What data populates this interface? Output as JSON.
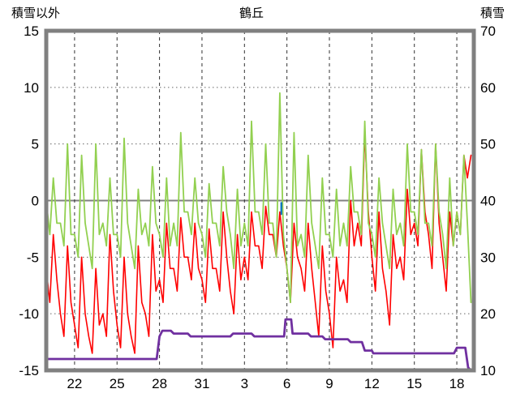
{
  "title": "鶴丘",
  "colors": {
    "frame": "#808080",
    "zero_line": "#808080",
    "grid_vertical": "#333333",
    "grid_horizontal": "#666666",
    "red_series": "#ff0000",
    "green_series": "#92d050",
    "purple_series": "#7030a0",
    "blue_mark": "#0070c0",
    "text": "#000000",
    "background": "#ffffff"
  },
  "chart_data": {
    "type": "line",
    "title": "鶴丘",
    "left_y_axis": {
      "label": "積雪以外",
      "range": [
        -15,
        15
      ],
      "ticks": [
        15,
        10,
        5,
        0,
        -5,
        -10,
        -15
      ]
    },
    "right_y_axis": {
      "label": "積雪",
      "range": [
        10,
        70
      ],
      "ticks": [
        70,
        60,
        50,
        40,
        30,
        20,
        10
      ]
    },
    "x_axis": {
      "range": [
        0,
        30.2
      ],
      "tick_positions": [
        2,
        5,
        8,
        11,
        14,
        17,
        20,
        23,
        26,
        29
      ],
      "tick_labels": [
        "22",
        "25",
        "28",
        "31",
        "3",
        "6",
        "9",
        "12",
        "15",
        "18"
      ]
    },
    "grid": true,
    "legend": "none",
    "series": [
      {
        "name": "red-temperature",
        "axis": "left",
        "color": "#ff0000",
        "width": 1.6,
        "x_start": 0,
        "x_step": 0.25,
        "y": [
          -6,
          -9,
          -3,
          -7,
          -10,
          -12,
          -4,
          -9,
          -11,
          -13,
          -5,
          -10,
          -12,
          -13.5,
          -6,
          -11,
          -10,
          -12,
          -3,
          -8,
          -11,
          -13,
          -5,
          -10,
          -12,
          -13.5,
          -4,
          -9,
          -10,
          -12,
          -3,
          -8,
          -7,
          -9,
          -2,
          -6,
          -6,
          -8,
          -1.5,
          -5,
          -5,
          -7,
          -2,
          -6,
          -7,
          -9,
          -2.5,
          -6,
          -6,
          -8,
          -1,
          -5,
          -8,
          -10,
          -3,
          -7,
          -5,
          -7,
          -1,
          -4,
          -4,
          -6,
          -0.5,
          -3,
          -3,
          -5,
          -1,
          -4,
          -6,
          -9,
          -2,
          -5,
          -6,
          -8,
          -2,
          -6,
          -9,
          -12,
          -4,
          -8,
          -10,
          -13,
          -5,
          -8,
          -7,
          -9,
          0,
          -4,
          -2,
          -4,
          6,
          -1,
          -5,
          -8,
          -1,
          -6,
          -8,
          -11,
          -3,
          -6,
          -5,
          -7,
          1,
          -3,
          -2,
          -4,
          4.5,
          -1,
          -3,
          -6,
          5,
          -2,
          -5,
          -8,
          -1,
          -4,
          -1,
          -3,
          4,
          2,
          4
        ]
      },
      {
        "name": "green-temperature",
        "axis": "left",
        "color": "#92d050",
        "width": 1.8,
        "x_start": 0,
        "x_step": 0.25,
        "y": [
          0,
          -3,
          2,
          -2,
          -2,
          -4,
          5,
          -3,
          -3,
          -5,
          4,
          -2,
          -4,
          -6,
          5,
          -3,
          -2,
          -4,
          2,
          -3,
          -3,
          -5,
          5.5,
          -2,
          -4,
          -6,
          1,
          -3,
          -2,
          -4,
          3,
          -2,
          -3,
          -5,
          2,
          -4,
          -2,
          -4,
          6,
          -1,
          -1,
          -3,
          2,
          -2,
          -3,
          -5,
          1.5,
          -2,
          -2,
          -4,
          3,
          -1,
          -3,
          -6,
          1,
          -4,
          -2,
          -4,
          7,
          -1,
          -1,
          -3,
          5,
          -2,
          -2,
          -5,
          9.5,
          -3,
          -6,
          -9,
          6,
          -4,
          -3,
          -5,
          4,
          -2,
          -4,
          -6,
          2,
          -3,
          -3,
          -5,
          1,
          -4,
          -2,
          -4,
          3,
          -1,
          -1,
          -3,
          7,
          -2,
          -3,
          -5,
          2,
          -2,
          -4,
          -6,
          1,
          -3,
          -2,
          -4,
          5,
          -1,
          -1,
          -3,
          4.5,
          -2,
          -2,
          -4,
          5,
          -1,
          -3,
          -6,
          2,
          -4,
          -1,
          -3,
          4,
          -2,
          -9
        ]
      },
      {
        "name": "purple-snow-depth",
        "axis": "right",
        "color": "#7030a0",
        "width": 2.8,
        "x": [
          0,
          7.8,
          8.0,
          8.2,
          8.8,
          9.0,
          10.0,
          10.2,
          13.0,
          13.2,
          14.5,
          14.7,
          16.8,
          16.9,
          17.3,
          17.4,
          18.5,
          18.7,
          19.5,
          19.7,
          21.3,
          21.5,
          22.3,
          22.5,
          23.0,
          23.1,
          28.8,
          29.0,
          29.6,
          29.8,
          30.0
        ],
        "y": [
          12,
          12,
          16,
          17,
          17,
          16.5,
          16.5,
          16,
          16,
          16.5,
          16.5,
          16,
          16,
          19,
          19,
          16.5,
          16.5,
          16,
          16,
          15.5,
          15.5,
          15,
          15,
          13.5,
          13.5,
          13,
          13,
          14,
          14,
          10.5,
          10
        ]
      },
      {
        "name": "blue-mark",
        "axis": "left",
        "color": "#0070c0",
        "width": 2.2,
        "x": [
          16.6,
          16.6
        ],
        "y": [
          -0.2,
          -1.2
        ]
      }
    ]
  }
}
